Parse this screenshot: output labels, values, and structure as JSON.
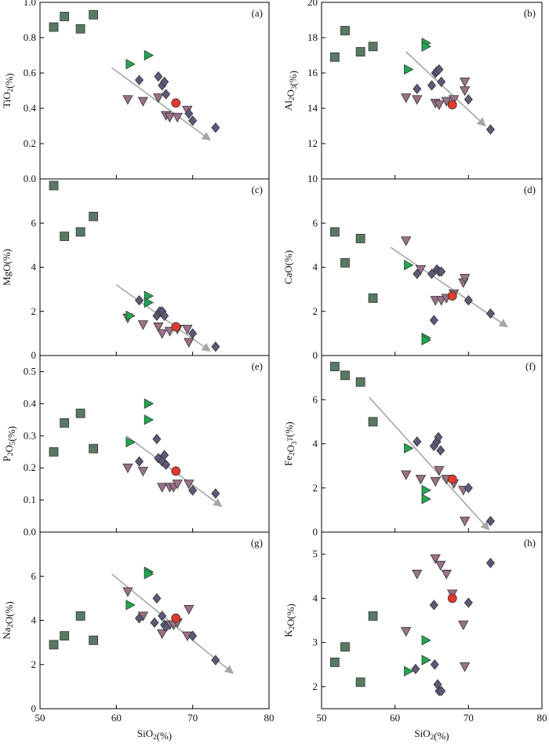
{
  "colors": {
    "square": "#587a63",
    "green_triangle": "#1fa84f",
    "pink_triangle": "#9a7188",
    "diamond": "#5c5a7a",
    "red_circle": "#e23a2c",
    "trend_arrow": "#a6a6a6"
  },
  "chart_data": [
    {
      "type": "scatter",
      "panel": "(a)",
      "xlabel": "",
      "ylabel": "TiO2(%)",
      "xlim": [
        50,
        80
      ],
      "ylim": [
        0.0,
        1.0
      ],
      "yticks": [
        "0.0",
        "0.2",
        "0.4",
        "0.6",
        "0.8",
        "1.0"
      ],
      "xticks": [],
      "series": {
        "squares": [
          [
            51.8,
            0.86
          ],
          [
            53.2,
            0.92
          ],
          [
            55.3,
            0.85
          ],
          [
            57.0,
            0.93
          ]
        ],
        "green_triangles": [
          [
            61.8,
            0.65
          ],
          [
            64.2,
            0.7
          ]
        ],
        "pink_triangles": [
          [
            61.5,
            0.45
          ],
          [
            63.5,
            0.44
          ],
          [
            65.5,
            0.46
          ],
          [
            66.5,
            0.36
          ],
          [
            67.0,
            0.35
          ],
          [
            68.0,
            0.35
          ],
          [
            69.3,
            0.39
          ]
        ],
        "diamonds": [
          [
            63.0,
            0.56
          ],
          [
            65.5,
            0.58
          ],
          [
            66.0,
            0.53
          ],
          [
            66.3,
            0.55
          ],
          [
            66.5,
            0.48
          ],
          [
            69.5,
            0.37
          ],
          [
            70.0,
            0.33
          ],
          [
            73.0,
            0.29
          ]
        ],
        "red_circles": [
          [
            67.8,
            0.43
          ]
        ]
      },
      "trend": [
        [
          59.4,
          0.63
        ],
        [
          72.3,
          0.22
        ]
      ]
    },
    {
      "type": "scatter",
      "panel": "(b)",
      "xlabel": "",
      "ylabel": "Al2O3(%)",
      "xlim": [
        50,
        80
      ],
      "ylim": [
        10,
        20
      ],
      "yticks": [
        "10",
        "12",
        "14",
        "16",
        "18",
        "20"
      ],
      "xticks": [],
      "series": {
        "squares": [
          [
            51.8,
            16.9
          ],
          [
            53.2,
            18.4
          ],
          [
            55.3,
            17.2
          ],
          [
            57.0,
            17.5
          ]
        ],
        "green_triangles": [
          [
            61.8,
            16.2
          ],
          [
            64.2,
            17.7
          ],
          [
            64.2,
            17.5
          ]
        ],
        "pink_triangles": [
          [
            61.5,
            14.6
          ],
          [
            63.0,
            14.5
          ],
          [
            65.5,
            14.3
          ],
          [
            66.0,
            14.2
          ],
          [
            67.0,
            14.4
          ],
          [
            68.0,
            14.5
          ],
          [
            69.5,
            15.5
          ],
          [
            69.5,
            15.0
          ]
        ],
        "diamonds": [
          [
            63.0,
            15.1
          ],
          [
            65.0,
            15.3
          ],
          [
            65.5,
            16.0
          ],
          [
            65.7,
            16.1
          ],
          [
            66.0,
            16.2
          ],
          [
            66.3,
            15.5
          ],
          [
            70.0,
            14.5
          ],
          [
            73.0,
            12.8
          ]
        ],
        "red_circles": [
          [
            67.8,
            14.2
          ]
        ]
      },
      "trend": [
        [
          61.5,
          17.2
        ],
        [
          72.3,
          13.0
        ]
      ]
    },
    {
      "type": "scatter",
      "panel": "(c)",
      "xlabel": "",
      "ylabel": "MgO(%)",
      "xlim": [
        50,
        80
      ],
      "ylim": [
        0,
        8
      ],
      "yticks": [
        "0",
        "2",
        "4",
        "6"
      ],
      "xticks": [],
      "series": {
        "squares": [
          [
            51.8,
            7.7
          ],
          [
            53.2,
            5.4
          ],
          [
            55.3,
            5.6
          ],
          [
            57.0,
            6.3
          ]
        ],
        "green_triangles": [
          [
            61.8,
            1.8
          ],
          [
            64.2,
            2.7
          ],
          [
            64.2,
            2.4
          ]
        ],
        "pink_triangles": [
          [
            61.5,
            1.7
          ],
          [
            63.5,
            1.4
          ],
          [
            65.5,
            1.3
          ],
          [
            66.0,
            1.0
          ],
          [
            67.0,
            1.1
          ],
          [
            68.0,
            1.2
          ],
          [
            69.3,
            1.2
          ],
          [
            69.5,
            0.6
          ]
        ],
        "diamonds": [
          [
            63.0,
            2.5
          ],
          [
            65.3,
            1.8
          ],
          [
            65.7,
            2.0
          ],
          [
            66.0,
            2.0
          ],
          [
            66.3,
            1.8
          ],
          [
            70.0,
            1.0
          ],
          [
            73.0,
            0.4
          ]
        ],
        "red_circles": [
          [
            67.8,
            1.3
          ]
        ]
      },
      "trend": [
        [
          60.0,
          3.2
        ],
        [
          72.3,
          0.2
        ]
      ]
    },
    {
      "type": "scatter",
      "panel": "(d)",
      "xlabel": "",
      "ylabel": "CaO(%)",
      "xlim": [
        50,
        80
      ],
      "ylim": [
        0,
        8
      ],
      "yticks": [
        "0",
        "2",
        "4",
        "6"
      ],
      "xticks": [],
      "series": {
        "squares": [
          [
            51.8,
            5.6
          ],
          [
            53.2,
            4.2
          ],
          [
            55.3,
            5.3
          ],
          [
            57.0,
            2.6
          ]
        ],
        "green_triangles": [
          [
            61.8,
            4.1
          ],
          [
            64.2,
            0.8
          ],
          [
            64.2,
            0.7
          ]
        ],
        "pink_triangles": [
          [
            61.5,
            5.2
          ],
          [
            63.5,
            3.9
          ],
          [
            65.5,
            2.5
          ],
          [
            66.3,
            2.5
          ],
          [
            67.0,
            2.6
          ],
          [
            68.0,
            2.8
          ],
          [
            69.3,
            3.3
          ],
          [
            69.5,
            3.5
          ]
        ],
        "diamonds": [
          [
            63.0,
            3.7
          ],
          [
            65.0,
            3.7
          ],
          [
            65.7,
            3.9
          ],
          [
            66.0,
            3.8
          ],
          [
            66.3,
            3.8
          ],
          [
            65.3,
            1.6
          ],
          [
            70.0,
            2.5
          ],
          [
            73.0,
            1.9
          ]
        ],
        "red_circles": [
          [
            67.8,
            2.7
          ]
        ]
      },
      "trend": [
        [
          59.4,
          4.9
        ],
        [
          75.3,
          1.3
        ]
      ]
    },
    {
      "type": "scatter",
      "panel": "(e)",
      "xlabel": "",
      "ylabel": "P2O5(%)",
      "xlim": [
        50,
        80
      ],
      "ylim": [
        0.0,
        0.55
      ],
      "yticks": [
        "0.0",
        "0.1",
        "0.2",
        "0.3",
        "0.4",
        "0.5"
      ],
      "xticks": [],
      "series": {
        "squares": [
          [
            51.8,
            0.25
          ],
          [
            53.2,
            0.34
          ],
          [
            55.3,
            0.37
          ],
          [
            57.0,
            0.26
          ]
        ],
        "green_triangles": [
          [
            61.8,
            0.28
          ],
          [
            64.2,
            0.4
          ],
          [
            64.2,
            0.35
          ]
        ],
        "pink_triangles": [
          [
            61.5,
            0.2
          ],
          [
            63.5,
            0.19
          ],
          [
            66.0,
            0.14
          ],
          [
            67.0,
            0.14
          ],
          [
            67.5,
            0.14
          ],
          [
            68.0,
            0.15
          ],
          [
            69.5,
            0.15
          ]
        ],
        "diamonds": [
          [
            63.0,
            0.22
          ],
          [
            65.3,
            0.29
          ],
          [
            65.5,
            0.23
          ],
          [
            66.0,
            0.22
          ],
          [
            66.3,
            0.24
          ],
          [
            66.5,
            0.21
          ],
          [
            70.0,
            0.13
          ],
          [
            73.0,
            0.12
          ]
        ],
        "red_circles": [
          [
            67.8,
            0.19
          ]
        ]
      },
      "trend": [
        [
          61.3,
          0.3
        ],
        [
          73.8,
          0.08
        ]
      ]
    },
    {
      "type": "scatter",
      "panel": "(f)",
      "xlabel": "",
      "ylabel": "Fe2O3T(%)",
      "xlim": [
        50,
        80
      ],
      "ylim": [
        0,
        8
      ],
      "yticks": [
        "0",
        "2",
        "4",
        "6"
      ],
      "xticks": [],
      "series": {
        "squares": [
          [
            51.8,
            7.5
          ],
          [
            53.2,
            7.1
          ],
          [
            55.3,
            6.8
          ],
          [
            57.0,
            5.0
          ]
        ],
        "green_triangles": [
          [
            61.8,
            3.8
          ],
          [
            64.2,
            1.9
          ],
          [
            64.2,
            1.5
          ]
        ],
        "pink_triangles": [
          [
            61.5,
            2.6
          ],
          [
            63.5,
            2.4
          ],
          [
            65.5,
            2.3
          ],
          [
            66.0,
            2.8
          ],
          [
            67.0,
            2.4
          ],
          [
            68.0,
            2.2
          ],
          [
            69.3,
            1.9
          ],
          [
            69.5,
            0.5
          ]
        ],
        "diamonds": [
          [
            63.0,
            4.1
          ],
          [
            65.3,
            3.9
          ],
          [
            65.7,
            4.1
          ],
          [
            65.9,
            4.3
          ],
          [
            66.2,
            3.7
          ],
          [
            70.0,
            2.0
          ],
          [
            73.0,
            0.5
          ]
        ],
        "red_circles": [
          [
            67.8,
            2.4
          ]
        ]
      },
      "trend": [
        [
          56.5,
          6.1
        ],
        [
          72.8,
          0.1
        ]
      ]
    },
    {
      "type": "scatter",
      "panel": "(g)",
      "xlabel": "SiO2(%)",
      "ylabel": "Na2O(%)",
      "xlim": [
        50,
        80
      ],
      "ylim": [
        0,
        8
      ],
      "yticks": [
        "0",
        "2",
        "4",
        "6"
      ],
      "xticks": [
        "50",
        "60",
        "70",
        "80"
      ],
      "series": {
        "squares": [
          [
            51.8,
            2.9
          ],
          [
            53.2,
            3.3
          ],
          [
            55.3,
            4.2
          ],
          [
            57.0,
            3.1
          ]
        ],
        "green_triangles": [
          [
            61.8,
            4.7
          ],
          [
            64.2,
            6.2
          ],
          [
            64.2,
            6.1
          ]
        ],
        "pink_triangles": [
          [
            61.5,
            5.3
          ],
          [
            63.5,
            4.2
          ],
          [
            66.0,
            3.4
          ],
          [
            67.0,
            3.8
          ],
          [
            67.5,
            3.8
          ],
          [
            68.0,
            3.9
          ],
          [
            69.3,
            3.3
          ],
          [
            69.5,
            4.5
          ]
        ],
        "diamonds": [
          [
            63.0,
            4.1
          ],
          [
            65.3,
            5.0
          ],
          [
            65.0,
            3.9
          ],
          [
            66.0,
            4.2
          ],
          [
            66.3,
            3.8
          ],
          [
            66.5,
            3.7
          ],
          [
            70.0,
            3.3
          ],
          [
            73.0,
            2.2
          ]
        ],
        "red_circles": [
          [
            67.8,
            4.1
          ]
        ]
      },
      "trend": [
        [
          59.4,
          6.1
        ],
        [
          75.3,
          1.6
        ]
      ]
    },
    {
      "type": "scatter",
      "panel": "(h)",
      "xlabel": "SiO2(%)",
      "ylabel": "K2O(%)",
      "xlim": [
        50,
        80
      ],
      "ylim": [
        1.5,
        5.5
      ],
      "yticks": [
        "2",
        "3",
        "4",
        "5"
      ],
      "xticks": [
        "50",
        "60",
        "70",
        "80"
      ],
      "series": {
        "squares": [
          [
            51.8,
            2.55
          ],
          [
            53.2,
            2.9
          ],
          [
            55.3,
            2.1
          ],
          [
            57.0,
            3.6
          ]
        ],
        "green_triangles": [
          [
            61.8,
            2.35
          ],
          [
            64.2,
            2.6
          ],
          [
            64.2,
            3.05
          ]
        ],
        "pink_triangles": [
          [
            61.5,
            3.25
          ],
          [
            63.0,
            4.55
          ],
          [
            65.5,
            4.9
          ],
          [
            66.2,
            4.75
          ],
          [
            67.0,
            4.55
          ],
          [
            67.8,
            4.1
          ],
          [
            69.3,
            3.4
          ],
          [
            69.5,
            2.45
          ]
        ],
        "diamonds": [
          [
            62.8,
            2.4
          ],
          [
            65.3,
            3.85
          ],
          [
            65.4,
            2.5
          ],
          [
            65.8,
            2.05
          ],
          [
            66.0,
            1.9
          ],
          [
            66.3,
            1.9
          ],
          [
            70.0,
            3.9
          ],
          [
            73.0,
            4.8
          ]
        ],
        "red_circles": [
          [
            67.8,
            4.0
          ]
        ]
      },
      "trend": null
    }
  ]
}
